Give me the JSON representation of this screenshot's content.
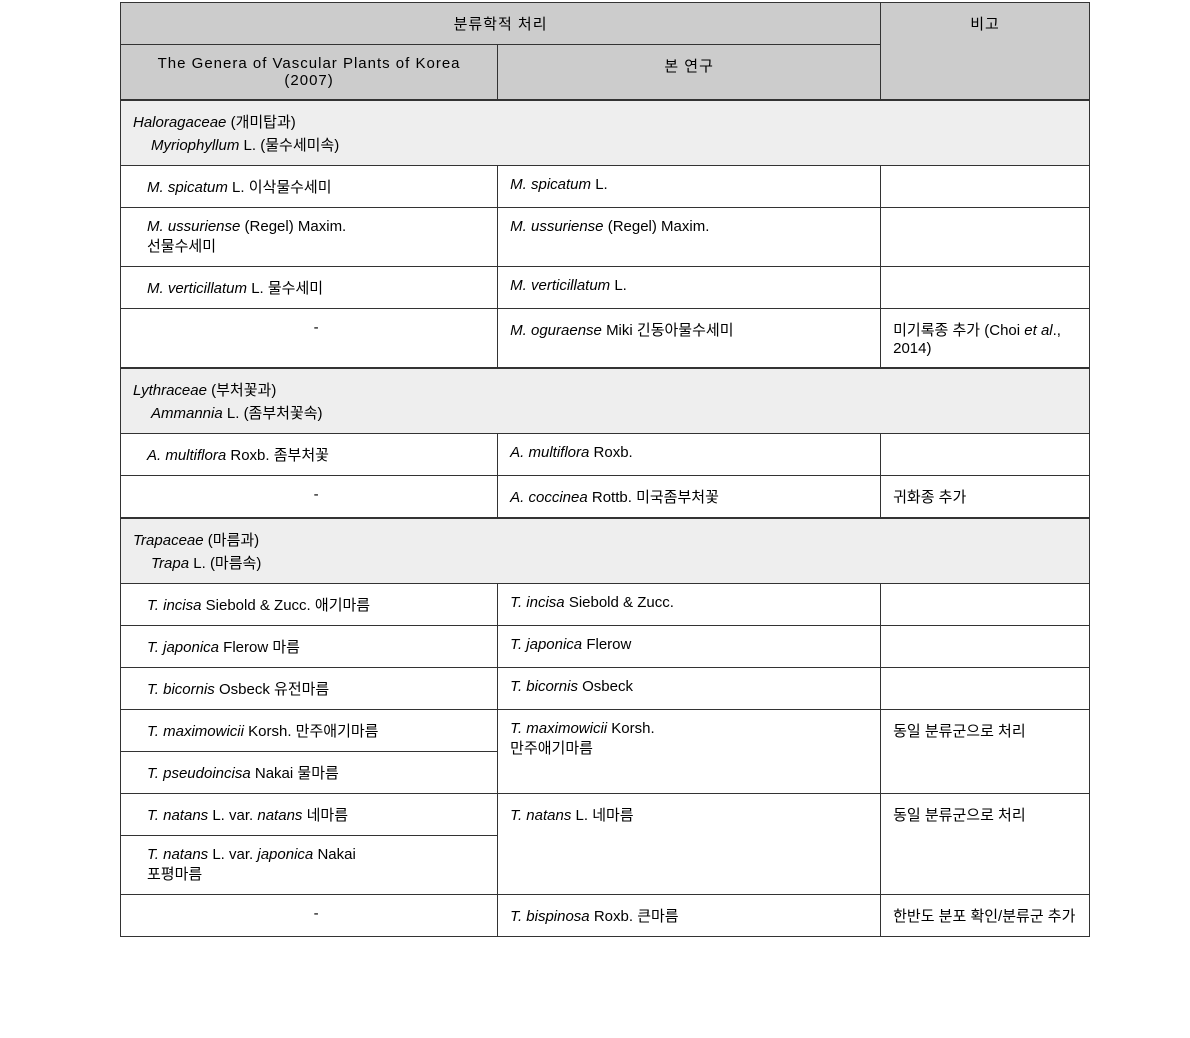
{
  "header": {
    "taxo_treatment": "분류학적 처리",
    "col_left": "The Genera of Vascular Plants of Korea (2007)",
    "col_mid": "본 연구",
    "col_right": "비고"
  },
  "sections": [
    {
      "family_italic": "Haloragaceae",
      "family_korean": "(개미탑과)",
      "genus_italic": "Myriophyllum",
      "genus_auth": "L.",
      "genus_korean": "(물수세미속)"
    },
    {
      "family_italic": "Lythraceae",
      "family_korean": "(부처꽃과)",
      "genus_italic": "Ammannia",
      "genus_auth": "L.",
      "genus_korean": "(좀부처꽃속)"
    },
    {
      "family_italic": "Trapaceae",
      "family_korean": "(마름과)",
      "genus_italic": "Trapa",
      "genus_auth": "L.",
      "genus_korean": "(마름속)"
    }
  ],
  "rows": {
    "m_spicatum_l": {
      "abbr": "M. spicatum",
      "auth": "L.",
      "kor": "이삭물수세미"
    },
    "m_spicatum_r": {
      "abbr": "M. spicatum",
      "auth": "L."
    },
    "m_ussur_l": {
      "abbr": "M. ussuriense",
      "auth": "(Regel) Maxim.",
      "kor": "선물수세미"
    },
    "m_ussur_r": {
      "abbr": "M. ussuriense",
      "auth": "(Regel) Maxim."
    },
    "m_vert_l": {
      "abbr": "M. verticillatum",
      "auth": "L.",
      "kor": "물수세미"
    },
    "m_vert_r": {
      "abbr": "M. verticillatum",
      "auth": "L."
    },
    "m_ogura": {
      "abbr": "M. oguraense",
      "auth": "Miki",
      "kor": "긴동아물수세미"
    },
    "m_ogura_note_pre": "미기록종 추가 (Choi ",
    "m_ogura_note_it": "et al",
    "m_ogura_note_post": "., 2014)",
    "dash": "-",
    "a_multi_l": {
      "abbr": "A. multiflora",
      "auth": "Roxb.",
      "kor": "좀부처꽃"
    },
    "a_multi_r": {
      "abbr": "A. multiflora",
      "auth": "Roxb."
    },
    "a_cocc": {
      "abbr": "A. coccinea",
      "auth": "Rottb.",
      "kor": "미국좀부처꽃"
    },
    "a_cocc_note": "귀화종 추가",
    "t_incisa_l": {
      "abbr": "T. incisa",
      "auth": "Siebold & Zucc.",
      "kor": "애기마름"
    },
    "t_incisa_r": {
      "abbr": "T. incisa",
      "auth": "Siebold & Zucc."
    },
    "t_jap_l": {
      "abbr": "T. japonica",
      "auth": "Flerow",
      "kor": "마름"
    },
    "t_jap_r": {
      "abbr": "T. japonica",
      "auth": "Flerow"
    },
    "t_bic_l": {
      "abbr": "T. bicornis",
      "auth": "Osbeck",
      "kor": "유전마름"
    },
    "t_bic_r": {
      "abbr": "T. bicornis",
      "auth": "Osbeck"
    },
    "t_max_l": {
      "abbr": "T. maximowicii",
      "auth": "Korsh.",
      "kor": "만주애기마름"
    },
    "t_max_r": {
      "abbr": "T. maximowicii",
      "auth": "Korsh.",
      "kor": "만주애기마름"
    },
    "t_pseudo": {
      "abbr": "T. pseudoincisa",
      "auth": "Nakai",
      "kor": "물마름"
    },
    "t_merge_note": "동일 분류군으로 처리",
    "t_natans_l": {
      "abbr": "T. natans",
      "auth": "L. var.",
      "var": "natans",
      "kor": "네마름"
    },
    "t_natans_r": {
      "abbr": "T. natans",
      "auth": "L.",
      "kor": "네마름"
    },
    "t_natans_jap": {
      "abbr": "T. natans",
      "auth": "L. var.",
      "var": "japonica",
      "varauth": "Nakai",
      "kor": "포평마름"
    },
    "t_bisp": {
      "abbr": "T. bispinosa",
      "auth": "Roxb.",
      "kor": "큰마름"
    },
    "t_bisp_note": "한반도 분포 확인/분류군 추가"
  },
  "style": {
    "header_bg": "#cccccc",
    "section_bg": "#eeeeee",
    "border_color": "#333333",
    "font_size_pt": 11,
    "font_family": "Malgun Gothic",
    "col_widths_pct": [
      32.5,
      33,
      18
    ],
    "page_bg": "#ffffff"
  }
}
